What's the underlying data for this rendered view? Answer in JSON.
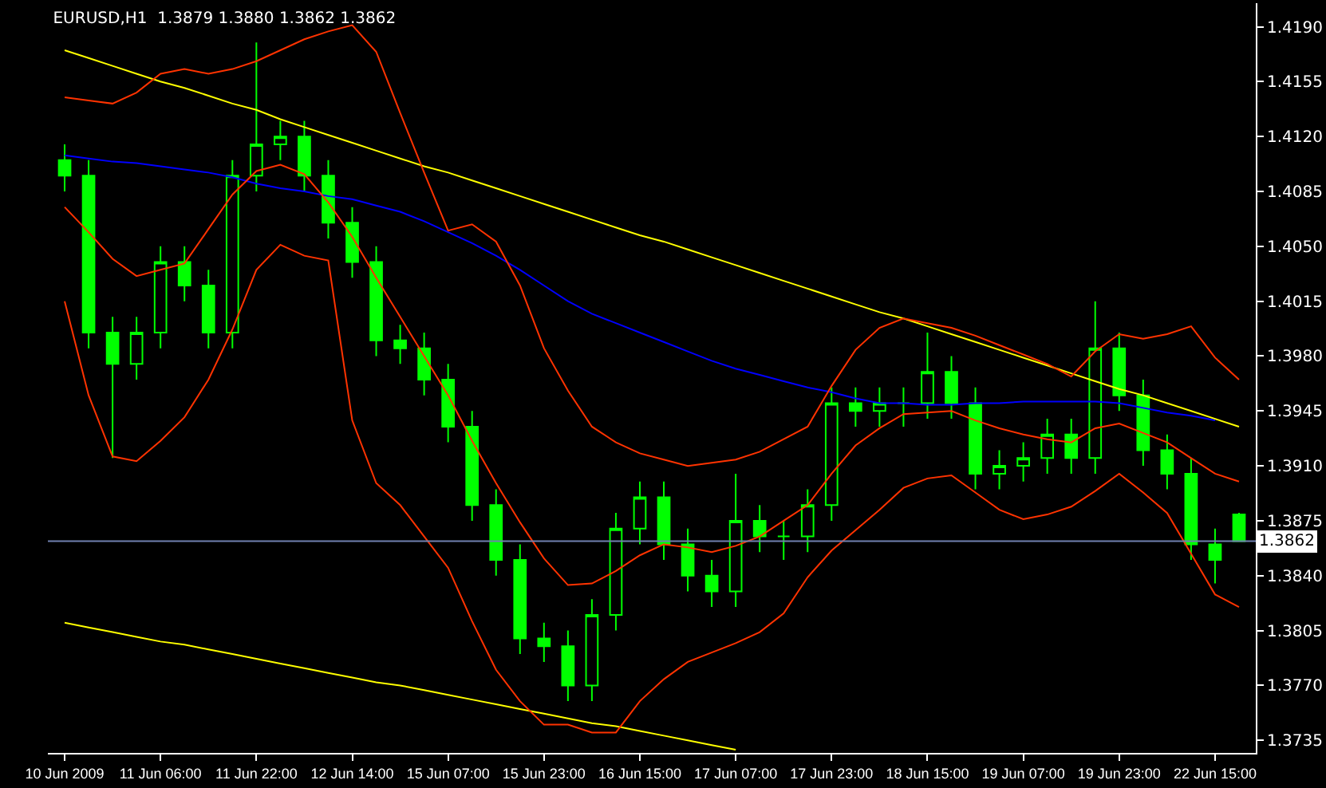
{
  "chart_data": {
    "type": "candlestick",
    "title": "EURUSD,H1  1.3879 1.3880 1.3862 1.3862",
    "color": "#00ff00",
    "categories": [
      "10 Jun 2009",
      null,
      null,
      null,
      "11 Jun 06:00",
      null,
      null,
      null,
      "11 Jun 22:00",
      null,
      null,
      null,
      "12 Jun 14:00",
      null,
      null,
      null,
      "15 Jun 07:00",
      null,
      null,
      null,
      "15 Jun 23:00",
      null,
      null,
      null,
      "16 Jun 15:00",
      null,
      null,
      null,
      "17 Jun 07:00",
      null,
      null,
      null,
      "17 Jun 23:00",
      null,
      null,
      null,
      "18 Jun 15:00",
      null,
      null,
      null,
      "19 Jun 07:00",
      null,
      null,
      null,
      "19 Jun 23:00",
      null,
      null,
      null,
      "22 Jun 15:00",
      null
    ],
    "ohlc": [
      [
        1.4105,
        1.4115,
        1.4085,
        1.4095
      ],
      [
        1.4095,
        1.4105,
        1.3985,
        1.3995
      ],
      [
        1.3995,
        1.4005,
        1.3915,
        1.3975
      ],
      [
        1.3975,
        1.4005,
        1.3965,
        1.3995
      ],
      [
        1.3995,
        1.405,
        1.3985,
        1.404
      ],
      [
        1.404,
        1.405,
        1.4015,
        1.4025
      ],
      [
        1.4025,
        1.4035,
        1.3985,
        1.3995
      ],
      [
        1.3995,
        1.4105,
        1.3985,
        1.4095
      ],
      [
        1.4095,
        1.418,
        1.4085,
        1.4115
      ],
      [
        1.4115,
        1.413,
        1.4105,
        1.412
      ],
      [
        1.412,
        1.413,
        1.4085,
        1.4095
      ],
      [
        1.4095,
        1.4105,
        1.4055,
        1.4065
      ],
      [
        1.4065,
        1.4075,
        1.403,
        1.404
      ],
      [
        1.404,
        1.405,
        1.398,
        1.399
      ],
      [
        1.399,
        1.4,
        1.3975,
        1.3985
      ],
      [
        1.3985,
        1.3995,
        1.3955,
        1.3965
      ],
      [
        1.3965,
        1.3975,
        1.3925,
        1.3935
      ],
      [
        1.3935,
        1.3945,
        1.3875,
        1.3885
      ],
      [
        1.3885,
        1.3895,
        1.384,
        1.385
      ],
      [
        1.385,
        1.386,
        1.379,
        1.38
      ],
      [
        1.38,
        1.381,
        1.3785,
        1.3795
      ],
      [
        1.3795,
        1.3805,
        1.376,
        1.377
      ],
      [
        1.377,
        1.3825,
        1.376,
        1.3815
      ],
      [
        1.3815,
        1.388,
        1.3805,
        1.387
      ],
      [
        1.387,
        1.39,
        1.386,
        1.389
      ],
      [
        1.389,
        1.39,
        1.385,
        1.386
      ],
      [
        1.386,
        1.387,
        1.383,
        1.384
      ],
      [
        1.384,
        1.385,
        1.382,
        1.383
      ],
      [
        1.383,
        1.3905,
        1.382,
        1.3875
      ],
      [
        1.3875,
        1.3885,
        1.3855,
        1.3865
      ],
      [
        1.3865,
        1.3875,
        1.385,
        1.3865
      ],
      [
        1.3865,
        1.3895,
        1.3855,
        1.3885
      ],
      [
        1.3885,
        1.396,
        1.3875,
        1.395
      ],
      [
        1.395,
        1.396,
        1.3935,
        1.3945
      ],
      [
        1.3945,
        1.396,
        1.3935,
        1.395
      ],
      [
        1.395,
        1.396,
        1.3935,
        1.395
      ],
      [
        1.395,
        1.3995,
        1.394,
        1.397
      ],
      [
        1.397,
        1.398,
        1.394,
        1.395
      ],
      [
        1.395,
        1.396,
        1.3895,
        1.3905
      ],
      [
        1.3905,
        1.392,
        1.3895,
        1.391
      ],
      [
        1.391,
        1.3925,
        1.39,
        1.3915
      ],
      [
        1.3915,
        1.394,
        1.3905,
        1.393
      ],
      [
        1.393,
        1.394,
        1.3905,
        1.3915
      ],
      [
        1.3915,
        1.4015,
        1.3905,
        1.3985
      ],
      [
        1.3985,
        1.3995,
        1.3945,
        1.3955
      ],
      [
        1.3955,
        1.3965,
        1.391,
        1.392
      ],
      [
        1.392,
        1.393,
        1.3895,
        1.3905
      ],
      [
        1.3905,
        1.3915,
        1.385,
        1.386
      ],
      [
        1.386,
        1.387,
        1.3835,
        1.385
      ],
      [
        1.3879,
        1.388,
        1.3862,
        1.3862
      ]
    ],
    "series": [
      {
        "type": "line",
        "color": "#0000ff",
        "values": [
          1.4108,
          1.4106,
          1.4104,
          1.4103,
          1.4101,
          1.4099,
          1.4097,
          1.4094,
          1.409,
          1.4087,
          1.4085,
          1.4082,
          1.408,
          1.4076,
          1.4072,
          1.4066,
          1.4059,
          1.4052,
          1.4044,
          1.4035,
          1.4025,
          1.4015,
          1.4007,
          1.4001,
          1.3995,
          1.3989,
          1.3983,
          1.3977,
          1.3972,
          1.3968,
          1.3964,
          1.396,
          1.3957,
          1.3953,
          1.395,
          1.395,
          1.3949,
          1.3949,
          1.395,
          1.395,
          1.3951,
          1.3951,
          1.3951,
          1.3951,
          1.395,
          1.3947,
          1.3944,
          1.3942,
          1.3939,
          null
        ]
      },
      {
        "type": "line",
        "color": "#ffff00",
        "values": [
          1.4175,
          1.417,
          1.4165,
          1.416,
          1.4155,
          1.4151,
          1.4146,
          1.4141,
          1.4137,
          1.4131,
          1.4126,
          1.4121,
          1.4116,
          1.4111,
          1.4106,
          1.4101,
          1.4097,
          1.4092,
          1.4087,
          1.4082,
          1.4077,
          1.4072,
          1.4067,
          1.4062,
          1.4057,
          1.4053,
          1.4048,
          1.4043,
          1.4038,
          1.4033,
          1.4028,
          1.4023,
          1.4018,
          1.4013,
          1.4008,
          1.4004,
          1.3999,
          1.3994,
          1.3989,
          1.3984,
          1.3979,
          1.3974,
          1.3969,
          1.3964,
          1.3959,
          1.3955,
          1.395,
          1.3945,
          1.394,
          1.3935
        ]
      },
      {
        "type": "line",
        "color": "#ffff00",
        "values": [
          1.381,
          1.3807,
          1.3804,
          1.3801,
          1.3798,
          1.3796,
          1.3793,
          1.379,
          1.3787,
          1.3784,
          1.3781,
          1.3778,
          1.3775,
          1.3772,
          1.377,
          1.3767,
          1.3764,
          1.3761,
          1.3758,
          1.3755,
          1.3752,
          1.3749,
          1.3746,
          1.3744,
          1.3741,
          1.3738,
          1.3735,
          1.3732,
          1.3729,
          null,
          null,
          null,
          null,
          null,
          null,
          null,
          null,
          null,
          null,
          null,
          null,
          null,
          null,
          null,
          null,
          null,
          null,
          null,
          null,
          null
        ]
      },
      {
        "type": "line",
        "color": "#ff3300",
        "values": [
          1.4145,
          1.4143,
          1.4141,
          1.4148,
          1.416,
          1.4163,
          1.416,
          1.4163,
          1.4168,
          1.4175,
          1.4182,
          1.4187,
          1.4191,
          1.4174,
          1.4135,
          1.4097,
          1.406,
          1.4064,
          1.4053,
          1.4025,
          1.3985,
          1.3958,
          1.3935,
          1.3925,
          1.3918,
          1.3914,
          1.391,
          1.3912,
          1.3914,
          1.3919,
          1.3927,
          1.3935,
          1.3961,
          1.3984,
          1.3998,
          1.4004,
          1.4001,
          1.3998,
          1.3993,
          1.3987,
          1.3981,
          1.3975,
          1.3967,
          1.3983,
          1.3994,
          1.3991,
          1.3994,
          1.3999,
          1.3979,
          1.3965
        ]
      },
      {
        "type": "line",
        "color": "#ff3300",
        "values": [
          1.4075,
          1.4059,
          1.4042,
          1.4031,
          1.4035,
          1.4039,
          1.4061,
          1.4083,
          1.4098,
          1.4102,
          1.4096,
          1.4078,
          1.4056,
          1.403,
          1.4005,
          1.398,
          1.3955,
          1.3926,
          1.3899,
          1.3874,
          1.3851,
          1.3834,
          1.3835,
          1.3843,
          1.3853,
          1.386,
          1.3858,
          1.3855,
          1.3859,
          1.3865,
          1.3875,
          1.3885,
          1.3905,
          1.3923,
          1.3934,
          1.3943,
          1.3944,
          1.3945,
          1.3939,
          1.3934,
          1.393,
          1.3927,
          1.3925,
          1.3934,
          1.3937,
          1.3931,
          1.3925,
          1.3915,
          1.3905,
          1.39
        ]
      },
      {
        "type": "line",
        "color": "#ff3300",
        "values": [
          1.4015,
          1.3955,
          1.3916,
          1.3913,
          1.3926,
          1.3941,
          1.3965,
          1.3997,
          1.4035,
          1.4051,
          1.4044,
          1.4041,
          1.3939,
          1.3899,
          1.3885,
          1.3865,
          1.3845,
          1.3811,
          1.378,
          1.376,
          1.3745,
          1.3745,
          1.374,
          1.374,
          1.376,
          1.3774,
          1.3785,
          1.3791,
          1.3797,
          1.3804,
          1.3816,
          1.3839,
          1.3856,
          1.3869,
          1.3882,
          1.3896,
          1.3902,
          1.3904,
          1.3893,
          1.3882,
          1.3876,
          1.3879,
          1.3884,
          1.3894,
          1.3905,
          1.3893,
          1.388,
          1.3854,
          1.3828,
          1.382
        ]
      }
    ],
    "ref_lines": [
      {
        "axis": "y",
        "value": 1.3862,
        "label": "1.3862",
        "color": "#7080b0"
      }
    ],
    "ylim": [
      1.3727,
      1.4205
    ],
    "yticks": [
      {
        "value": 1.419,
        "label": "1.4190"
      },
      {
        "value": 1.4155,
        "label": "1.4155"
      },
      {
        "value": 1.412,
        "label": "1.4120"
      },
      {
        "value": 1.4085,
        "label": "1.4085"
      },
      {
        "value": 1.405,
        "label": "1.4050"
      },
      {
        "value": 1.4015,
        "label": "1.4015"
      },
      {
        "value": 1.398,
        "label": "1.3980"
      },
      {
        "value": 1.3945,
        "label": "1.3945"
      },
      {
        "value": 1.391,
        "label": "1.3910"
      },
      {
        "value": 1.3875,
        "label": "1.3875"
      },
      {
        "value": 1.384,
        "label": "1.3840"
      },
      {
        "value": 1.3805,
        "label": "1.3805"
      },
      {
        "value": 1.377,
        "label": "1.3770"
      },
      {
        "value": 1.3735,
        "label": "1.3735"
      }
    ]
  }
}
